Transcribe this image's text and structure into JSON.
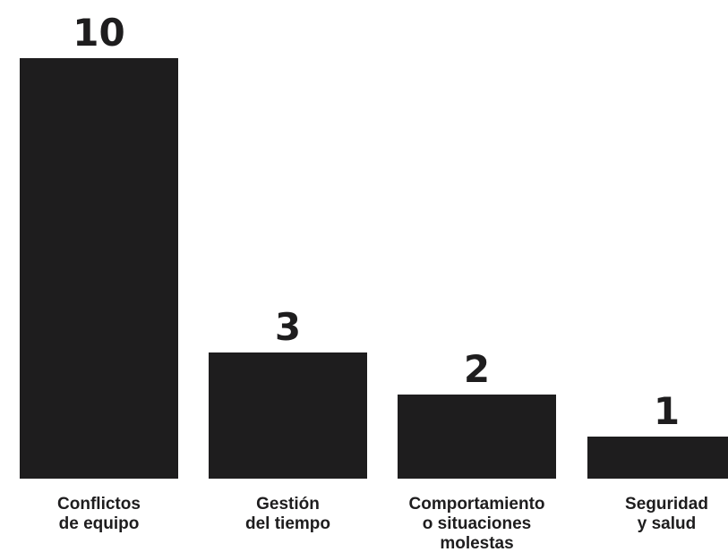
{
  "chart_data": {
    "type": "bar",
    "categories": [
      [
        "Conflictos",
        "de equipo"
      ],
      [
        "Gestión",
        "del tiempo"
      ],
      [
        "Comportamiento",
        "o situaciones",
        "molestas"
      ],
      [
        "Seguridad",
        "y salud"
      ]
    ],
    "values": [
      10,
      3,
      2,
      1
    ],
    "ylim": [
      0,
      10
    ],
    "grid": false,
    "legend": "none",
    "colors": {
      "bar": "#1e1d1e",
      "value_text": "#1e1d1e",
      "label_text": "#1e1d1e",
      "background": "#ffffff"
    }
  }
}
